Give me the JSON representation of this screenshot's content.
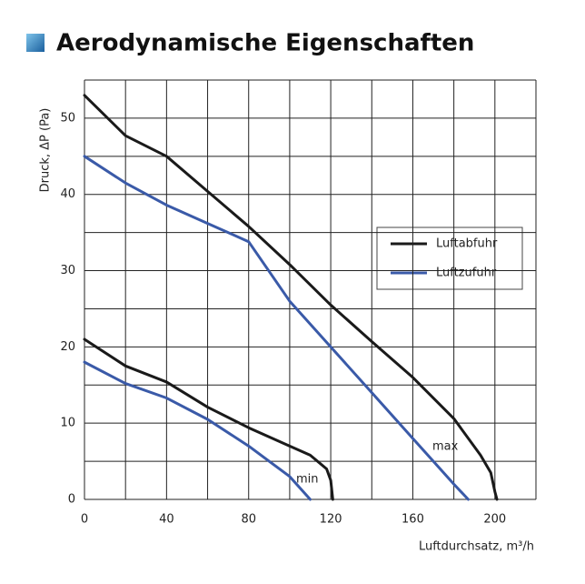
{
  "chart_data": {
    "type": "line",
    "title": "Aerodynamische Eigenschaften",
    "y_label": "Druck, ΔP (Pa)",
    "x_label": "Luftdurchsatz, m³/h",
    "xlim": [
      0,
      220
    ],
    "ylim": [
      0,
      55
    ],
    "xticks": [
      0,
      40,
      80,
      120,
      160,
      200
    ],
    "yticks": [
      0,
      10,
      20,
      30,
      40,
      50
    ],
    "xgrid": [
      0,
      20,
      40,
      60,
      80,
      100,
      120,
      140,
      160,
      180,
      200,
      220
    ],
    "ygrid": [
      0,
      5,
      10,
      15,
      20,
      25,
      30,
      35,
      40,
      45,
      50,
      55
    ],
    "annotations": [
      "max",
      "min"
    ],
    "series": [
      {
        "name": "Luftabfuhr",
        "color": "#1a1a1a",
        "x": [
          0,
          20,
          40,
          60,
          80,
          100,
          120,
          140,
          160,
          180,
          193,
          198,
          200,
          201
        ],
        "values": [
          53,
          47.7,
          45,
          40.4,
          35.8,
          30.8,
          25.5,
          20.7,
          16,
          10.6,
          5.8,
          3.5,
          1,
          0
        ]
      },
      {
        "name": "Luftzufuhr",
        "color": "#3a5aa8",
        "x": [
          0,
          20,
          40,
          60,
          80,
          100,
          120,
          140,
          160,
          180,
          187
        ],
        "values": [
          45,
          41.5,
          38.6,
          36.2,
          33.8,
          26,
          20,
          14,
          8,
          2,
          0
        ]
      },
      {
        "name": "Luftabfuhr",
        "color": "#1a1a1a",
        "x": [
          0,
          20,
          40,
          60,
          80,
          100,
          110,
          118,
          120,
          121
        ],
        "values": [
          21,
          17.5,
          15.4,
          12.1,
          9.4,
          7,
          5.8,
          4,
          2.5,
          0
        ]
      },
      {
        "name": "Luftzufuhr",
        "color": "#3a5aa8",
        "x": [
          0,
          20,
          40,
          60,
          80,
          100,
          110
        ],
        "values": [
          18,
          15.2,
          13.3,
          10.5,
          7,
          3,
          0
        ]
      }
    ]
  }
}
